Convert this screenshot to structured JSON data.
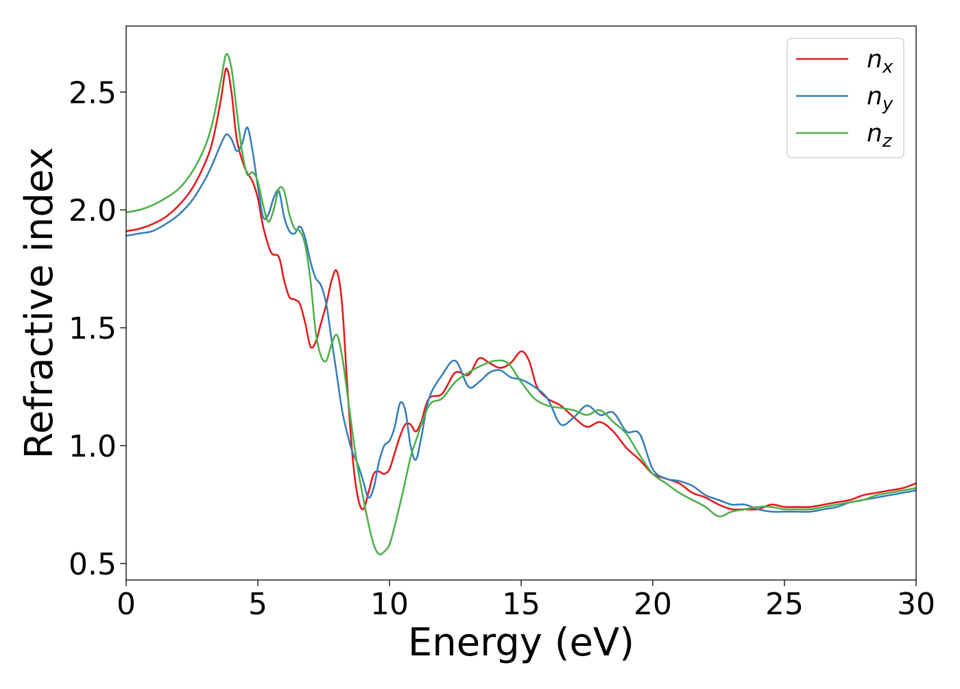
{
  "chart_data": {
    "type": "line",
    "xlabel": "Energy (eV)",
    "ylabel": "Refractive index",
    "xlim": [
      0,
      30
    ],
    "ylim": [
      0.43,
      2.78
    ],
    "xticks": [
      0,
      5,
      10,
      15,
      20,
      25,
      30
    ],
    "xtick_labels": [
      "0",
      "5",
      "10",
      "15",
      "20",
      "25",
      "30"
    ],
    "yticks": [
      0.5,
      1.0,
      1.5,
      2.0,
      2.5
    ],
    "ytick_labels": [
      "0.5",
      "1.0",
      "1.5",
      "2.0",
      "2.5"
    ],
    "grid": false,
    "legend_position": "top-right",
    "series": [
      {
        "name": "n_x",
        "legend_base": "n",
        "legend_sub": "x",
        "color": "#e41a1c",
        "x": [
          0,
          0.5,
          1,
          1.5,
          2,
          2.5,
          3,
          3.3,
          3.6,
          3.8,
          4.0,
          4.2,
          4.5,
          4.8,
          5.0,
          5.2,
          5.5,
          5.8,
          6.0,
          6.2,
          6.4,
          6.6,
          6.8,
          7.0,
          7.2,
          7.4,
          7.6,
          7.8,
          8.0,
          8.2,
          8.4,
          8.6,
          8.8,
          9.0,
          9.2,
          9.4,
          9.6,
          9.8,
          10.0,
          10.2,
          10.4,
          10.6,
          10.8,
          11.0,
          11.2,
          11.5,
          12.0,
          12.5,
          13.0,
          13.4,
          13.8,
          14.2,
          14.6,
          15.0,
          15.3,
          15.6,
          16.0,
          16.5,
          17.0,
          17.5,
          18.0,
          18.5,
          19.0,
          19.5,
          20.0,
          20.5,
          21.0,
          21.5,
          22.0,
          22.5,
          23.0,
          23.5,
          24.0,
          24.5,
          25.0,
          25.5,
          26.0,
          26.5,
          27.0,
          27.5,
          28.0,
          28.5,
          29.0,
          29.5,
          30.0
        ],
        "y": [
          1.91,
          1.92,
          1.94,
          1.97,
          2.02,
          2.09,
          2.2,
          2.3,
          2.47,
          2.6,
          2.5,
          2.3,
          2.18,
          2.12,
          2.05,
          1.93,
          1.82,
          1.8,
          1.7,
          1.63,
          1.62,
          1.6,
          1.52,
          1.42,
          1.44,
          1.52,
          1.6,
          1.7,
          1.74,
          1.6,
          1.25,
          0.95,
          0.78,
          0.73,
          0.8,
          0.88,
          0.89,
          0.88,
          0.9,
          0.97,
          1.04,
          1.09,
          1.09,
          1.06,
          1.1,
          1.2,
          1.22,
          1.31,
          1.3,
          1.37,
          1.35,
          1.33,
          1.35,
          1.4,
          1.36,
          1.25,
          1.2,
          1.17,
          1.12,
          1.08,
          1.1,
          1.06,
          0.99,
          0.94,
          0.88,
          0.86,
          0.84,
          0.8,
          0.78,
          0.75,
          0.73,
          0.73,
          0.73,
          0.75,
          0.74,
          0.74,
          0.74,
          0.75,
          0.76,
          0.77,
          0.79,
          0.8,
          0.81,
          0.82,
          0.84
        ]
      },
      {
        "name": "n_y",
        "legend_base": "n",
        "legend_sub": "y",
        "color": "#377eb8",
        "x": [
          0,
          0.5,
          1,
          1.5,
          2,
          2.5,
          3,
          3.3,
          3.6,
          3.8,
          4.0,
          4.2,
          4.4,
          4.6,
          4.8,
          5.0,
          5.2,
          5.4,
          5.6,
          5.8,
          6.0,
          6.2,
          6.4,
          6.6,
          6.8,
          7.0,
          7.2,
          7.4,
          7.6,
          7.8,
          8.0,
          8.2,
          8.4,
          8.6,
          8.8,
          9.0,
          9.2,
          9.4,
          9.6,
          9.8,
          10.0,
          10.2,
          10.4,
          10.6,
          10.8,
          11.0,
          11.2,
          11.5,
          12.0,
          12.5,
          13.0,
          13.4,
          13.8,
          14.2,
          14.6,
          15.0,
          15.5,
          16.0,
          16.5,
          17.0,
          17.5,
          18.0,
          18.5,
          19.0,
          19.5,
          20.0,
          20.5,
          21.0,
          21.5,
          22.0,
          22.5,
          23.0,
          23.5,
          24.0,
          24.5,
          25.0,
          25.5,
          26.0,
          26.5,
          27.0,
          27.5,
          28.0,
          28.5,
          29.0,
          29.5,
          30.0
        ],
        "y": [
          1.89,
          1.9,
          1.91,
          1.94,
          1.98,
          2.04,
          2.13,
          2.2,
          2.28,
          2.32,
          2.3,
          2.25,
          2.28,
          2.35,
          2.25,
          2.1,
          1.97,
          1.98,
          2.05,
          2.08,
          1.97,
          1.91,
          1.9,
          1.93,
          1.88,
          1.78,
          1.71,
          1.68,
          1.6,
          1.45,
          1.3,
          1.15,
          1.05,
          0.97,
          0.92,
          0.85,
          0.78,
          0.82,
          0.93,
          1.0,
          1.02,
          1.08,
          1.18,
          1.15,
          1.0,
          0.94,
          1.03,
          1.2,
          1.3,
          1.36,
          1.25,
          1.27,
          1.31,
          1.32,
          1.29,
          1.28,
          1.25,
          1.2,
          1.09,
          1.12,
          1.17,
          1.13,
          1.14,
          1.06,
          1.05,
          0.9,
          0.86,
          0.85,
          0.83,
          0.79,
          0.77,
          0.75,
          0.75,
          0.73,
          0.72,
          0.72,
          0.72,
          0.72,
          0.73,
          0.74,
          0.76,
          0.77,
          0.78,
          0.79,
          0.8,
          0.81
        ]
      },
      {
        "name": "n_z",
        "legend_base": "n",
        "legend_sub": "z",
        "color": "#4daf4a",
        "x": [
          0,
          0.5,
          1,
          1.5,
          2,
          2.5,
          3,
          3.3,
          3.6,
          3.8,
          4.0,
          4.2,
          4.4,
          4.6,
          4.8,
          5.0,
          5.2,
          5.4,
          5.6,
          5.8,
          6.0,
          6.2,
          6.4,
          6.6,
          6.8,
          7.0,
          7.2,
          7.4,
          7.6,
          7.8,
          8.0,
          8.2,
          8.4,
          8.6,
          8.8,
          9.0,
          9.2,
          9.4,
          9.6,
          9.8,
          10.0,
          10.2,
          10.5,
          10.8,
          11.0,
          11.5,
          12.0,
          12.5,
          13.0,
          13.5,
          14.0,
          14.5,
          15.0,
          15.5,
          16.0,
          16.5,
          17.0,
          17.5,
          18.0,
          18.5,
          19.0,
          19.5,
          20.0,
          20.5,
          21.0,
          21.5,
          22.0,
          22.5,
          23.0,
          23.5,
          24.0,
          24.5,
          25.0,
          25.5,
          26.0,
          26.5,
          27.0,
          27.5,
          28.0,
          28.5,
          29.0,
          29.5,
          30.0
        ],
        "y": [
          1.99,
          2.0,
          2.02,
          2.05,
          2.09,
          2.16,
          2.27,
          2.38,
          2.55,
          2.66,
          2.6,
          2.42,
          2.25,
          2.15,
          2.16,
          2.12,
          2.02,
          1.95,
          2.0,
          2.09,
          2.08,
          1.98,
          1.92,
          1.91,
          1.85,
          1.7,
          1.48,
          1.38,
          1.36,
          1.43,
          1.47,
          1.38,
          1.22,
          1.05,
          0.9,
          0.78,
          0.67,
          0.58,
          0.54,
          0.55,
          0.58,
          0.66,
          0.8,
          0.95,
          1.02,
          1.17,
          1.2,
          1.27,
          1.31,
          1.34,
          1.36,
          1.35,
          1.27,
          1.2,
          1.17,
          1.16,
          1.15,
          1.13,
          1.15,
          1.1,
          1.05,
          0.96,
          0.88,
          0.84,
          0.8,
          0.77,
          0.74,
          0.7,
          0.72,
          0.73,
          0.74,
          0.74,
          0.73,
          0.73,
          0.73,
          0.74,
          0.75,
          0.76,
          0.77,
          0.79,
          0.8,
          0.81,
          0.82
        ]
      }
    ]
  }
}
